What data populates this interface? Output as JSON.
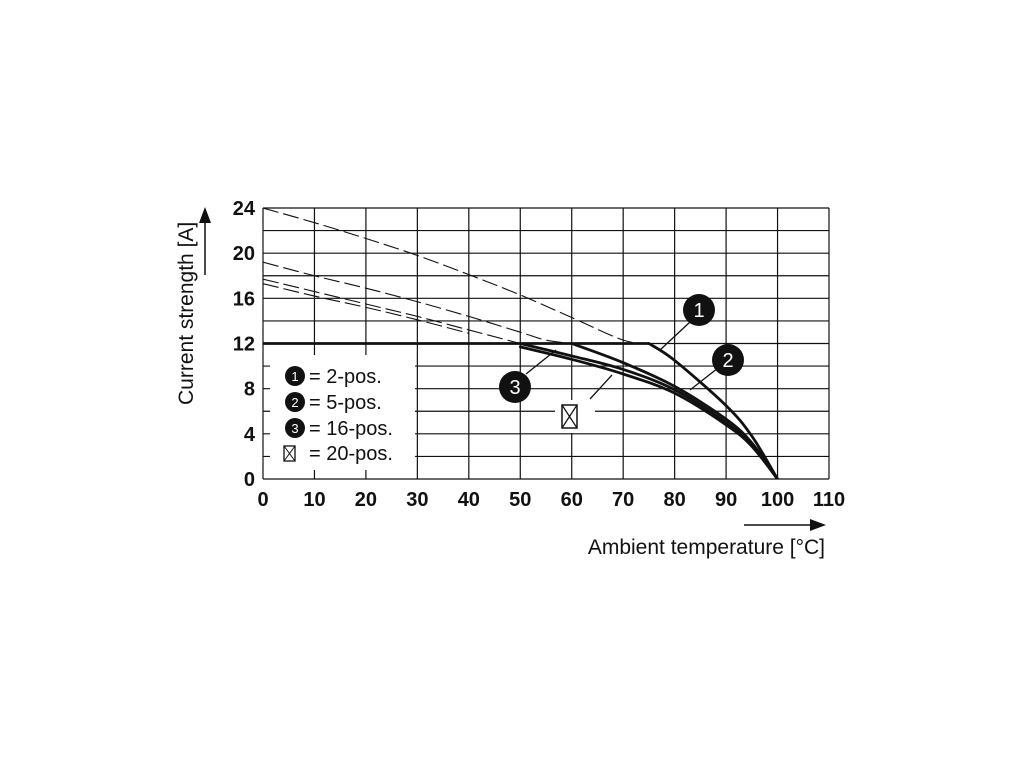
{
  "chart_data": {
    "type": "line",
    "title": "",
    "xlabel": "Ambient temperature [°C]",
    "ylabel": "Current strength [A]",
    "xlim": [
      0,
      110
    ],
    "ylim": [
      0,
      24
    ],
    "x_ticks": [
      "0",
      "10",
      "20",
      "30",
      "40",
      "50",
      "60",
      "70",
      "80",
      "90",
      "100",
      "110"
    ],
    "y_ticks": [
      "0",
      "4",
      "8",
      "12",
      "16",
      "20",
      "24"
    ],
    "grid": true,
    "current_limit": 12,
    "series": [
      {
        "name": "2-pos.",
        "badge": "1",
        "x": [
          0,
          10,
          20,
          30,
          40,
          50,
          60,
          70,
          75,
          80,
          90,
          95,
          100
        ],
        "y": [
          24,
          22.7,
          21.3,
          19.8,
          18.1,
          16.3,
          14.3,
          12.3,
          12,
          10.5,
          6.5,
          3.8,
          0
        ]
      },
      {
        "name": "5-pos.",
        "badge": "2",
        "x": [
          0,
          10,
          20,
          30,
          40,
          50,
          55,
          60,
          70,
          80,
          90,
          95,
          100
        ],
        "y": [
          19.2,
          18,
          16.9,
          15.7,
          14.4,
          13,
          12.3,
          12,
          10.3,
          8.2,
          5.3,
          3.2,
          0
        ]
      },
      {
        "name": "16-pos.",
        "badge": "3",
        "x": [
          0,
          10,
          20,
          30,
          40,
          50,
          60,
          70,
          80,
          90,
          95,
          100
        ],
        "y": [
          17.7,
          16.6,
          15.5,
          14.4,
          13.2,
          12,
          10.9,
          9.7,
          7.9,
          5,
          3,
          0
        ]
      },
      {
        "name": "20-pos.",
        "badge": "",
        "x": [
          0,
          10,
          20,
          30,
          40,
          50,
          60,
          70,
          80,
          90,
          95,
          100
        ],
        "y": [
          17.3,
          16.2,
          15.2,
          14.1,
          12.9,
          11.7,
          10.6,
          9.3,
          7.6,
          4.8,
          2.9,
          0
        ]
      }
    ],
    "legend": [
      {
        "badge": "1",
        "text": "= 2-pos."
      },
      {
        "badge": "2",
        "text": "= 5-pos."
      },
      {
        "badge": "3",
        "text": "= 16-pos."
      },
      {
        "badge": "",
        "text": "= 20-pos."
      }
    ],
    "legend_position": "bottom-left"
  }
}
